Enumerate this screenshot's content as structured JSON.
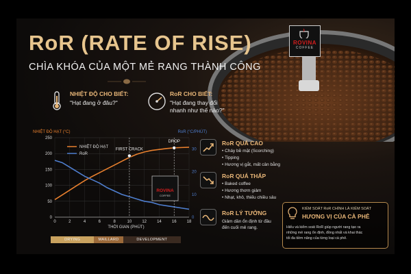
{
  "poster": {
    "title": "RoR (RATE OF RISE)",
    "subtitle": "CHÌA KHÓA CỦA MỘT MẺ RANG THÀNH CÔNG",
    "logo": {
      "name": "ROVINA",
      "sub": "COFFEE"
    }
  },
  "info": [
    {
      "icon": "thermometer-icon",
      "heading": "NHIỆT ĐỘ CHO BIẾT:",
      "text": [
        "\"Hạt đang ở đâu?\""
      ]
    },
    {
      "icon": "gauge-icon",
      "heading": "RoR CHO BIẾT:",
      "text": [
        "\"Hạt đang thay đổi",
        "nhanh như thế nào?\""
      ]
    }
  ],
  "chart_data": {
    "type": "line",
    "ylabel_left": "NHIỆT ĐỘ HẠT (°C)",
    "ylabel_right": "RoR (°C/PHÚT)",
    "xlabel": "THỜI GIAN (PHÚT)",
    "xlim": [
      0,
      18
    ],
    "ylim_left": [
      0,
      250
    ],
    "ylim_right": [
      0,
      35
    ],
    "x_ticks": [
      "0",
      "2",
      "4",
      "6",
      "8",
      "10",
      "12",
      "14",
      "16",
      "18"
    ],
    "y_ticks_left": [
      "0",
      "50",
      "100",
      "150",
      "200",
      "250"
    ],
    "y_ticks_right": [
      "0",
      "10",
      "20",
      "30"
    ],
    "grid": true,
    "legend_position": "top-left",
    "series": [
      {
        "name": "NHIỆT ĐỘ HẠT",
        "axis": "left",
        "color": "#e9802e",
        "x": [
          0,
          1,
          2,
          3,
          4,
          5,
          6,
          7,
          8,
          9,
          10,
          11,
          12,
          13,
          14,
          15,
          16,
          17,
          18
        ],
        "y": [
          55,
          70,
          85,
          100,
          115,
          128,
          140,
          152,
          164,
          176,
          188,
          198,
          205,
          210,
          213,
          216,
          218,
          219,
          220
        ]
      },
      {
        "name": "RoR",
        "axis": "right",
        "color": "#4f7fd0",
        "x": [
          0,
          1,
          2,
          3,
          4,
          5,
          6,
          7,
          8,
          9,
          10,
          11,
          12,
          13,
          14,
          15,
          16,
          17,
          18
        ],
        "y": [
          25,
          24,
          22,
          20,
          18,
          16.5,
          15,
          13,
          11.5,
          10,
          9,
          8,
          7,
          6.5,
          5.5,
          5,
          4.5,
          4,
          3.5
        ]
      }
    ],
    "annotations": [
      {
        "label": "FIRST CRACK",
        "x": 10,
        "y": 193
      },
      {
        "label": "DROP",
        "x": 16,
        "y": 218
      }
    ],
    "phases": [
      {
        "label": "DRYING",
        "start": 0,
        "end": 6,
        "color": "#c9a25f"
      },
      {
        "label": "MAILLARD",
        "start": 6,
        "end": 10,
        "color": "#9c6a3a"
      },
      {
        "label": "DEVELOPMENT",
        "start": 10,
        "end": 18,
        "color": "#3a2a20"
      }
    ]
  },
  "panel": [
    {
      "icon": "rising-chart-icon",
      "heading": "RoR QUÁ CAO",
      "bullets": [
        "• Cháy bề mặt (Scorching)",
        "• Tipping",
        "• Hương vị gắt, mất cân bằng"
      ]
    },
    {
      "icon": "falling-chart-icon",
      "heading": "RoR QUÁ THẤP",
      "bullets": [
        "• Baked coffee",
        "• Hương thơm giảm",
        "• Nhạt, khô, thiếu chiều sâu"
      ]
    },
    {
      "icon": "wave-icon",
      "heading": "RoR LÝ TƯỞNG",
      "text": [
        "Giảm dần ổn định từ đầu",
        "đến cuối mẻ rang."
      ]
    }
  ],
  "keybox": {
    "line1": "KIỂM SOÁT RoR CHÍNH LÀ KIỂM SOÁT",
    "line2": "HƯƠNG VỊ CỦA CÀ PHÊ",
    "body": [
      "Hiểu và kiểm soát RoR giúp người rang tạo ra",
      "những mẻ rang ổn định, đồng nhất và khai thác",
      "tối đa tiềm năng của từng loại cà phê."
    ]
  }
}
